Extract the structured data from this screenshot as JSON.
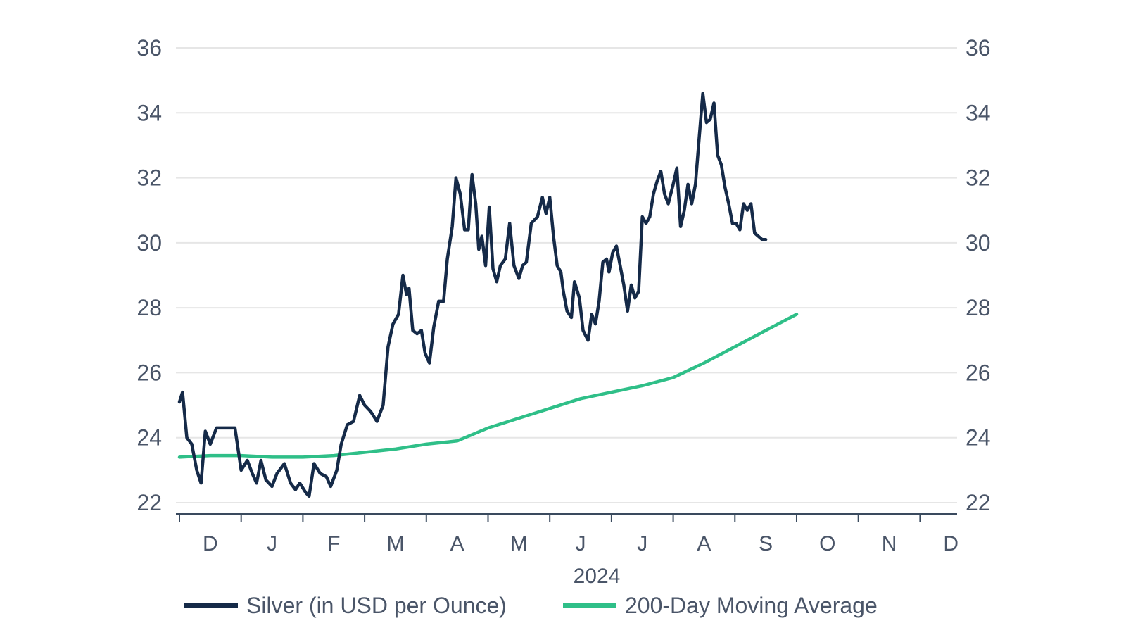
{
  "chart_data": {
    "type": "line",
    "title": "",
    "xlabel": "2024",
    "ylabel": "",
    "ylim": [
      22,
      36
    ],
    "y_ticks": [
      "22",
      "24",
      "26",
      "28",
      "30",
      "32",
      "34",
      "36"
    ],
    "x_range_months": [
      0,
      12.6
    ],
    "month_labels": [
      "D",
      "J",
      "F",
      "M",
      "A",
      "M",
      "J",
      "J",
      "A",
      "S",
      "O",
      "N",
      "D"
    ],
    "year_label": "2024",
    "grid": true,
    "legend": {
      "placement": "bottom",
      "entries": [
        "Silver (in USD per Ounce)",
        "200-Day Moving Average"
      ]
    },
    "colors": {
      "silver": "#152a48",
      "moving_average": "#2fbf88",
      "grid": "#e6e6e6",
      "axis": "#3a4a5e"
    },
    "series": [
      {
        "name": "Silver (in USD per Ounce)",
        "points": [
          [
            0.0,
            25.1
          ],
          [
            0.05,
            25.4
          ],
          [
            0.12,
            24.0
          ],
          [
            0.2,
            23.8
          ],
          [
            0.28,
            23.0
          ],
          [
            0.35,
            22.6
          ],
          [
            0.42,
            24.2
          ],
          [
            0.5,
            23.8
          ],
          [
            0.6,
            24.3
          ],
          [
            0.75,
            24.3
          ],
          [
            0.9,
            24.3
          ],
          [
            1.0,
            23.0
          ],
          [
            1.1,
            23.3
          ],
          [
            1.18,
            22.9
          ],
          [
            1.25,
            22.6
          ],
          [
            1.32,
            23.3
          ],
          [
            1.4,
            22.7
          ],
          [
            1.5,
            22.5
          ],
          [
            1.58,
            22.9
          ],
          [
            1.7,
            23.2
          ],
          [
            1.8,
            22.6
          ],
          [
            1.88,
            22.4
          ],
          [
            1.95,
            22.6
          ],
          [
            2.05,
            22.3
          ],
          [
            2.1,
            22.2
          ],
          [
            2.18,
            23.2
          ],
          [
            2.28,
            22.9
          ],
          [
            2.38,
            22.8
          ],
          [
            2.45,
            22.5
          ],
          [
            2.55,
            23.0
          ],
          [
            2.62,
            23.8
          ],
          [
            2.72,
            24.4
          ],
          [
            2.82,
            24.5
          ],
          [
            2.92,
            25.3
          ],
          [
            3.0,
            25.0
          ],
          [
            3.1,
            24.8
          ],
          [
            3.2,
            24.5
          ],
          [
            3.3,
            25.0
          ],
          [
            3.38,
            26.8
          ],
          [
            3.46,
            27.5
          ],
          [
            3.55,
            27.8
          ],
          [
            3.62,
            29.0
          ],
          [
            3.68,
            28.4
          ],
          [
            3.72,
            28.6
          ],
          [
            3.78,
            27.3
          ],
          [
            3.85,
            27.2
          ],
          [
            3.92,
            27.3
          ],
          [
            3.98,
            26.6
          ],
          [
            4.05,
            26.3
          ],
          [
            4.12,
            27.4
          ],
          [
            4.2,
            28.2
          ],
          [
            4.28,
            28.2
          ],
          [
            4.34,
            29.5
          ],
          [
            4.42,
            30.5
          ],
          [
            4.48,
            32.0
          ],
          [
            4.55,
            31.5
          ],
          [
            4.62,
            30.4
          ],
          [
            4.68,
            30.4
          ],
          [
            4.74,
            32.1
          ],
          [
            4.8,
            31.2
          ],
          [
            4.85,
            29.8
          ],
          [
            4.9,
            30.2
          ],
          [
            4.96,
            29.3
          ],
          [
            5.02,
            31.1
          ],
          [
            5.08,
            29.2
          ],
          [
            5.14,
            28.8
          ],
          [
            5.2,
            29.3
          ],
          [
            5.28,
            29.5
          ],
          [
            5.35,
            30.6
          ],
          [
            5.42,
            29.3
          ],
          [
            5.5,
            28.9
          ],
          [
            5.56,
            29.3
          ],
          [
            5.62,
            29.4
          ],
          [
            5.7,
            30.6
          ],
          [
            5.8,
            30.8
          ],
          [
            5.88,
            31.4
          ],
          [
            5.94,
            30.9
          ],
          [
            6.0,
            31.4
          ],
          [
            6.06,
            30.2
          ],
          [
            6.12,
            29.3
          ],
          [
            6.18,
            29.1
          ],
          [
            6.22,
            28.5
          ],
          [
            6.28,
            27.9
          ],
          [
            6.35,
            27.7
          ],
          [
            6.4,
            28.8
          ],
          [
            6.48,
            28.3
          ],
          [
            6.54,
            27.3
          ],
          [
            6.62,
            27.0
          ],
          [
            6.68,
            27.8
          ],
          [
            6.74,
            27.5
          ],
          [
            6.8,
            28.2
          ],
          [
            6.86,
            29.4
          ],
          [
            6.92,
            29.5
          ],
          [
            6.96,
            29.1
          ],
          [
            7.02,
            29.7
          ],
          [
            7.08,
            29.9
          ],
          [
            7.14,
            29.3
          ],
          [
            7.2,
            28.7
          ],
          [
            7.26,
            27.9
          ],
          [
            7.32,
            28.7
          ],
          [
            7.38,
            28.3
          ],
          [
            7.44,
            28.5
          ],
          [
            7.5,
            30.8
          ],
          [
            7.56,
            30.6
          ],
          [
            7.62,
            30.8
          ],
          [
            7.68,
            31.5
          ],
          [
            7.74,
            31.9
          ],
          [
            7.8,
            32.2
          ],
          [
            7.86,
            31.5
          ],
          [
            7.92,
            31.2
          ],
          [
            8.0,
            31.8
          ],
          [
            8.06,
            32.3
          ],
          [
            8.12,
            30.5
          ],
          [
            8.18,
            31.0
          ],
          [
            8.24,
            31.8
          ],
          [
            8.3,
            31.2
          ],
          [
            8.36,
            31.8
          ],
          [
            8.42,
            33.2
          ],
          [
            8.48,
            34.6
          ],
          [
            8.54,
            33.7
          ],
          [
            8.6,
            33.8
          ],
          [
            8.66,
            34.3
          ],
          [
            8.72,
            32.7
          ],
          [
            8.78,
            32.4
          ],
          [
            8.84,
            31.7
          ],
          [
            8.9,
            31.2
          ],
          [
            8.96,
            30.6
          ],
          [
            9.02,
            30.6
          ],
          [
            9.08,
            30.4
          ],
          [
            9.14,
            31.2
          ],
          [
            9.2,
            31.0
          ],
          [
            9.26,
            31.2
          ],
          [
            9.32,
            30.3
          ],
          [
            9.38,
            30.2
          ],
          [
            9.44,
            30.1
          ],
          [
            9.5,
            30.1
          ]
        ]
      },
      {
        "name": "200-Day Moving Average",
        "points": [
          [
            0.0,
            23.4
          ],
          [
            0.5,
            23.45
          ],
          [
            1.0,
            23.45
          ],
          [
            1.5,
            23.4
          ],
          [
            2.0,
            23.4
          ],
          [
            2.5,
            23.45
          ],
          [
            3.0,
            23.55
          ],
          [
            3.5,
            23.65
          ],
          [
            4.0,
            23.8
          ],
          [
            4.5,
            23.9
          ],
          [
            5.0,
            24.3
          ],
          [
            5.5,
            24.6
          ],
          [
            6.0,
            24.9
          ],
          [
            6.5,
            25.2
          ],
          [
            7.0,
            25.4
          ],
          [
            7.5,
            25.6
          ],
          [
            8.0,
            25.85
          ],
          [
            8.5,
            26.3
          ],
          [
            9.0,
            26.8
          ],
          [
            9.5,
            27.3
          ],
          [
            10.0,
            27.8
          ]
        ]
      }
    ]
  }
}
